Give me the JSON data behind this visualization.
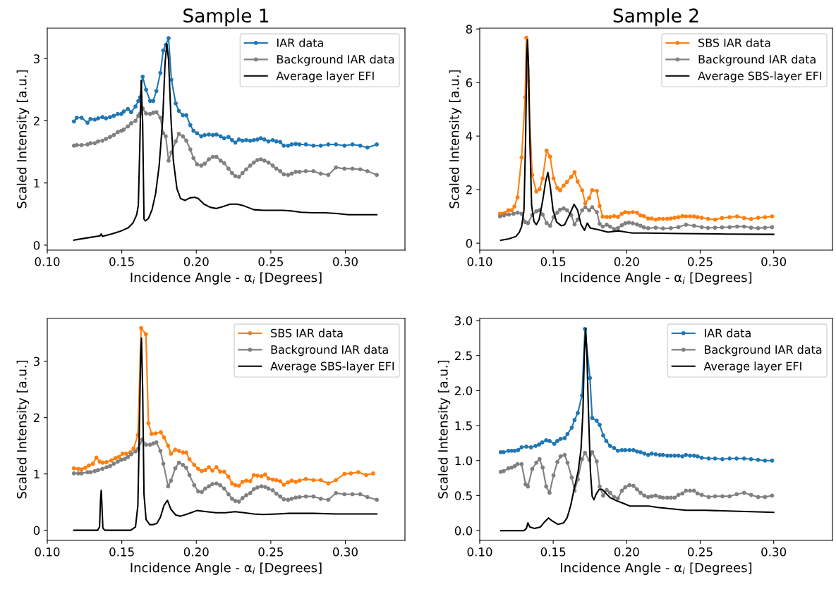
{
  "chart_data": [
    {
      "type": "line",
      "title": "Sample 1",
      "xlabel": "Incidence Angle - α$_{i}$ [Degrees]",
      "ylabel": "Scaled Intensity [a.u.]",
      "xlim": [
        0.1,
        0.34
      ],
      "ylim": [
        -0.08,
        3.49
      ],
      "xticks": [
        {
          "value": 0.1,
          "label": "0.10"
        },
        {
          "value": 0.15,
          "label": "0.15"
        },
        {
          "value": 0.2,
          "label": "0.20"
        },
        {
          "value": 0.25,
          "label": "0.25"
        },
        {
          "value": 0.3,
          "label": "0.30"
        }
      ],
      "yticks": [
        0,
        1,
        2,
        3
      ],
      "grid": false,
      "legend": "top right",
      "series": [
        {
          "name": "IAR data",
          "color": "#1f77b4",
          "marker": "circle",
          "x": [
            0.1179,
            0.1198,
            0.123,
            0.127,
            0.129,
            0.1319,
            0.1341,
            0.137,
            0.1394,
            0.1421,
            0.1446,
            0.1473,
            0.1497,
            0.1513,
            0.1541,
            0.1563,
            0.1592,
            0.1611,
            0.1624,
            0.164,
            0.1663,
            0.169,
            0.1711,
            0.1732,
            0.1759,
            0.1778,
            0.1795,
            0.1814,
            0.1833,
            0.1862,
            0.1883,
            0.191,
            0.1933,
            0.196,
            0.1981,
            0.2005,
            0.2033,
            0.2056,
            0.2084,
            0.2111,
            0.2135,
            0.2163,
            0.2187,
            0.2216,
            0.224,
            0.2262,
            0.2286,
            0.231,
            0.2335,
            0.2362,
            0.2386,
            0.241,
            0.2433,
            0.2457,
            0.2484,
            0.2513,
            0.2537,
            0.2563,
            0.2587,
            0.2616,
            0.264,
            0.2667,
            0.2692,
            0.2735,
            0.2786,
            0.2835,
            0.2886,
            0.2937,
            0.2994,
            0.3048,
            0.31,
            0.3148,
            0.3211
          ],
          "values": [
            1.99,
            2.05,
            2.05,
            1.97,
            2.03,
            2.02,
            2.04,
            2.06,
            2.04,
            2.06,
            2.08,
            2.11,
            2.11,
            2.15,
            2.19,
            2.14,
            2.23,
            2.32,
            2.38,
            2.71,
            2.5,
            2.32,
            2.32,
            2.48,
            2.77,
            3.13,
            3.22,
            3.33,
            2.66,
            2.28,
            2.16,
            2.09,
            2.09,
            1.93,
            1.84,
            1.8,
            1.75,
            1.77,
            1.78,
            1.77,
            1.78,
            1.75,
            1.72,
            1.74,
            1.69,
            1.65,
            1.7,
            1.68,
            1.69,
            1.68,
            1.69,
            1.7,
            1.72,
            1.7,
            1.67,
            1.69,
            1.67,
            1.66,
            1.6,
            1.6,
            1.62,
            1.63,
            1.62,
            1.62,
            1.6,
            1.6,
            1.62,
            1.62,
            1.6,
            1.62,
            1.6,
            1.57,
            1.62
          ]
        },
        {
          "name": "Background IAR data",
          "color": "#808080",
          "marker": "circle",
          "x": [
            0.1179,
            0.1198,
            0.123,
            0.127,
            0.129,
            0.1319,
            0.1341,
            0.137,
            0.1394,
            0.1421,
            0.1446,
            0.1473,
            0.1497,
            0.1513,
            0.1541,
            0.1563,
            0.1592,
            0.1611,
            0.1624,
            0.164,
            0.1663,
            0.169,
            0.1711,
            0.1732,
            0.1759,
            0.1778,
            0.1795,
            0.1814,
            0.1833,
            0.1862,
            0.1883,
            0.191,
            0.1933,
            0.196,
            0.1981,
            0.2005,
            0.2033,
            0.2056,
            0.2084,
            0.2111,
            0.2135,
            0.2163,
            0.2187,
            0.2216,
            0.224,
            0.2262,
            0.2286,
            0.231,
            0.2335,
            0.2362,
            0.2386,
            0.241,
            0.2433,
            0.2457,
            0.2484,
            0.2513,
            0.2537,
            0.2563,
            0.2587,
            0.2616,
            0.264,
            0.2667,
            0.2692,
            0.2735,
            0.2786,
            0.2835,
            0.2886,
            0.2937,
            0.2994,
            0.3048,
            0.31,
            0.3148,
            0.3211
          ],
          "values": [
            1.6,
            1.61,
            1.61,
            1.62,
            1.64,
            1.64,
            1.67,
            1.68,
            1.71,
            1.74,
            1.77,
            1.82,
            1.84,
            1.86,
            1.91,
            1.96,
            2.0,
            2.08,
            2.12,
            2.2,
            2.12,
            2.11,
            2.13,
            2.14,
            2.05,
            1.8,
            1.75,
            1.36,
            1.49,
            1.67,
            1.79,
            1.75,
            1.68,
            1.54,
            1.4,
            1.3,
            1.28,
            1.31,
            1.38,
            1.42,
            1.42,
            1.36,
            1.32,
            1.23,
            1.16,
            1.11,
            1.1,
            1.16,
            1.22,
            1.28,
            1.33,
            1.37,
            1.38,
            1.36,
            1.33,
            1.28,
            1.23,
            1.19,
            1.14,
            1.13,
            1.15,
            1.18,
            1.18,
            1.19,
            1.19,
            1.15,
            1.13,
            1.25,
            1.23,
            1.23,
            1.22,
            1.19,
            1.13
          ]
        },
        {
          "name": "Average layer EFI",
          "color": "#000000",
          "marker": "none",
          "x": [
            0.1179,
            0.1275,
            0.1354,
            0.1362,
            0.137,
            0.1433,
            0.1497,
            0.1544,
            0.1576,
            0.16,
            0.1611,
            0.1621,
            0.163,
            0.164,
            0.1649,
            0.1659,
            0.1679,
            0.1703,
            0.1727,
            0.1751,
            0.1775,
            0.179,
            0.1802,
            0.1814,
            0.183,
            0.1846,
            0.187,
            0.1894,
            0.1925,
            0.1957,
            0.1989,
            0.2013,
            0.2052,
            0.2092,
            0.2132,
            0.2179,
            0.2227,
            0.2275,
            0.2322,
            0.2386,
            0.2449,
            0.2513,
            0.2576,
            0.264,
            0.2703,
            0.2783,
            0.2862,
            0.2941,
            0.3021,
            0.31,
            0.3211
          ],
          "values": [
            0.08,
            0.12,
            0.15,
            0.18,
            0.14,
            0.18,
            0.23,
            0.28,
            0.36,
            0.49,
            0.64,
            1.59,
            2.65,
            1.96,
            0.42,
            0.39,
            0.43,
            0.57,
            0.83,
            1.28,
            2.04,
            2.91,
            3.24,
            2.98,
            2.04,
            1.36,
            0.91,
            0.75,
            0.72,
            0.76,
            0.77,
            0.75,
            0.66,
            0.61,
            0.59,
            0.62,
            0.66,
            0.66,
            0.63,
            0.57,
            0.56,
            0.56,
            0.56,
            0.55,
            0.53,
            0.52,
            0.52,
            0.51,
            0.49,
            0.49,
            0.49
          ]
        }
      ]
    },
    {
      "type": "line",
      "title": "Sample 2",
      "xlabel": "Incidence Angle - α$_{i}$ [Degrees]",
      "ylabel": "Scaled Intensity [a.u.]",
      "xlim": [
        0.1,
        0.34
      ],
      "ylim": [
        -0.26,
        8.03
      ],
      "xticks": [
        {
          "value": 0.1,
          "label": "0.10"
        },
        {
          "value": 0.15,
          "label": "0.15"
        },
        {
          "value": 0.2,
          "label": "0.20"
        },
        {
          "value": 0.25,
          "label": "0.25"
        },
        {
          "value": 0.3,
          "label": "0.30"
        }
      ],
      "yticks": [
        0,
        2,
        4,
        6,
        8
      ],
      "grid": false,
      "legend": "top right",
      "series": [
        {
          "name": "SBS IAR data",
          "color": "#ff7f0e",
          "marker": "circle",
          "x": [
            0.1138,
            0.1158,
            0.1174,
            0.1195,
            0.1217,
            0.1236,
            0.1257,
            0.1285,
            0.1309,
            0.1317,
            0.1328,
            0.1357,
            0.1385,
            0.1407,
            0.1428,
            0.1455,
            0.1479,
            0.1502,
            0.1528,
            0.1547,
            0.1571,
            0.1594,
            0.1623,
            0.1645,
            0.1666,
            0.1697,
            0.1718,
            0.1745,
            0.1765,
            0.1797,
            0.1816,
            0.1837,
            0.1864,
            0.1887,
            0.1914,
            0.194,
            0.1967,
            0.199,
            0.2014,
            0.2041,
            0.207,
            0.2094,
            0.2117,
            0.2146,
            0.217,
            0.2197,
            0.222,
            0.2247,
            0.2276,
            0.23,
            0.2326,
            0.2352,
            0.2379,
            0.2403,
            0.2431,
            0.2458,
            0.2482,
            0.251,
            0.2553,
            0.2601,
            0.2648,
            0.27,
            0.2751,
            0.2799,
            0.2846,
            0.2894,
            0.2941,
            0.2989
          ],
          "values": [
            1.1,
            1.1,
            1.13,
            1.23,
            1.23,
            1.37,
            1.71,
            3.2,
            5.45,
            7.67,
            6.07,
            2.55,
            1.93,
            2.02,
            2.42,
            3.46,
            3.23,
            2.42,
            2.06,
            1.97,
            2.15,
            2.29,
            2.48,
            2.65,
            2.3,
            1.97,
            1.49,
            1.69,
            1.98,
            1.95,
            1.39,
            0.99,
            0.98,
            0.98,
            1.01,
            0.98,
            1.1,
            1.16,
            1.14,
            1.16,
            1.14,
            1.04,
            1.01,
            0.92,
            0.92,
            0.88,
            0.91,
            0.91,
            0.91,
            0.92,
            0.95,
            0.97,
            1.01,
            1.0,
            1.0,
            1.0,
            0.97,
            0.95,
            0.91,
            0.88,
            0.94,
            0.97,
            1.0,
            0.94,
            0.9,
            0.95,
            0.97,
            1.0
          ]
        },
        {
          "name": "Background IAR data",
          "color": "#808080",
          "marker": "circle",
          "x": [
            0.1138,
            0.1166,
            0.1198,
            0.123,
            0.1257,
            0.1285,
            0.1309,
            0.1328,
            0.1357,
            0.1385,
            0.1407,
            0.1428,
            0.1455,
            0.1479,
            0.1502,
            0.1528,
            0.1547,
            0.1571,
            0.1594,
            0.1623,
            0.1645,
            0.1666,
            0.1697,
            0.1718,
            0.1745,
            0.1765,
            0.1797,
            0.1816,
            0.1837,
            0.1864,
            0.1887,
            0.1914,
            0.194,
            0.1967,
            0.199,
            0.2014,
            0.2041,
            0.207,
            0.2094,
            0.2117,
            0.2146,
            0.2197,
            0.2247,
            0.23,
            0.2352,
            0.2403,
            0.2458,
            0.251,
            0.2553,
            0.2601,
            0.2648,
            0.27,
            0.2751,
            0.2799,
            0.2846,
            0.2894,
            0.2941,
            0.2989
          ],
          "values": [
            1.0,
            1.04,
            1.07,
            1.1,
            1.14,
            1.1,
            0.79,
            0.75,
            1.05,
            1.19,
            1.23,
            1.07,
            0.75,
            0.65,
            0.97,
            1.14,
            1.25,
            1.3,
            1.23,
            1.05,
            0.7,
            0.88,
            1.23,
            1.34,
            1.23,
            1.34,
            1.16,
            0.72,
            0.62,
            0.69,
            0.62,
            0.53,
            0.56,
            0.67,
            0.74,
            0.77,
            0.74,
            0.7,
            0.65,
            0.59,
            0.56,
            0.58,
            0.55,
            0.56,
            0.6,
            0.69,
            0.65,
            0.6,
            0.57,
            0.58,
            0.59,
            0.6,
            0.62,
            0.62,
            0.58,
            0.56,
            0.58,
            0.6
          ]
        },
        {
          "name": "Average SBS-layer EFI",
          "color": "#000000",
          "marker": "none",
          "x": [
            0.1143,
            0.1198,
            0.1246,
            0.1269,
            0.1285,
            0.1301,
            0.1312,
            0.132,
            0.1325,
            0.1333,
            0.1341,
            0.1353,
            0.1369,
            0.1385,
            0.1404,
            0.1428,
            0.1448,
            0.1464,
            0.148,
            0.1499,
            0.1523,
            0.1555,
            0.1578,
            0.161,
            0.1642,
            0.1666,
            0.1689,
            0.1713,
            0.1732,
            0.1753,
            0.1784,
            0.1816,
            0.1872,
            0.1943,
            0.199,
            0.2038,
            0.2133,
            0.2371,
            0.2688,
            0.3
          ],
          "values": [
            0.11,
            0.16,
            0.25,
            0.4,
            0.62,
            1.23,
            3.87,
            6.95,
            7.6,
            6.51,
            3.87,
            1.41,
            0.81,
            0.69,
            0.88,
            1.58,
            2.29,
            2.64,
            2.11,
            1.23,
            0.79,
            0.65,
            0.69,
            1.06,
            1.45,
            1.23,
            0.7,
            0.48,
            0.75,
            0.56,
            0.53,
            0.49,
            0.41,
            0.46,
            0.42,
            0.38,
            0.38,
            0.36,
            0.34,
            0.33
          ]
        }
      ]
    },
    {
      "type": "line",
      "xlabel": "Incidence Angle - α$_{i}$ [Degrees]",
      "ylabel": "Scaled Intensity [a.u.]",
      "xlim": [
        0.1,
        0.34
      ],
      "ylim": [
        -0.18,
        3.76
      ],
      "xticks": [
        {
          "value": 0.1,
          "label": "0.10"
        },
        {
          "value": 0.15,
          "label": "0.15"
        },
        {
          "value": 0.2,
          "label": "0.20"
        },
        {
          "value": 0.25,
          "label": "0.25"
        },
        {
          "value": 0.3,
          "label": "0.30"
        }
      ],
      "yticks": [
        0,
        1,
        2,
        3
      ],
      "grid": false,
      "legend": "top right",
      "series": [
        {
          "name": "SBS IAR data",
          "color": "#ff7f0e",
          "marker": "circle",
          "x": [
            0.1179,
            0.1208,
            0.123,
            0.1256,
            0.1279,
            0.1306,
            0.133,
            0.1351,
            0.1373,
            0.1398,
            0.143,
            0.1457,
            0.1481,
            0.1505,
            0.1529,
            0.1557,
            0.1579,
            0.1608,
            0.163,
            0.1662,
            0.1679,
            0.17,
            0.1727,
            0.1762,
            0.1783,
            0.1811,
            0.183,
            0.1859,
            0.1884,
            0.191,
            0.1932,
            0.1954,
            0.1986,
            0.2013,
            0.2037,
            0.206,
            0.2084,
            0.2108,
            0.2135,
            0.216,
            0.2187,
            0.2216,
            0.224,
            0.2262,
            0.2286,
            0.231,
            0.2335,
            0.2362,
            0.2386,
            0.241,
            0.2437,
            0.2462,
            0.2484,
            0.2513,
            0.2537,
            0.2563,
            0.2587,
            0.2616,
            0.264,
            0.2667,
            0.2692,
            0.2735,
            0.2786,
            0.2835,
            0.2886,
            0.2937,
            0.2994,
            0.3037,
            0.3087,
            0.314,
            0.3187
          ],
          "values": [
            1.1,
            1.09,
            1.08,
            1.11,
            1.15,
            1.18,
            1.29,
            1.22,
            1.2,
            1.21,
            1.24,
            1.28,
            1.3,
            1.36,
            1.36,
            1.38,
            1.45,
            1.69,
            3.59,
            3.48,
            1.9,
            1.71,
            1.72,
            1.74,
            1.65,
            1.5,
            1.36,
            1.43,
            1.41,
            1.38,
            1.38,
            1.26,
            1.16,
            1.09,
            1.05,
            1.07,
            1.12,
            1.06,
            1.12,
            1.04,
            1.04,
            0.95,
            0.83,
            0.8,
            0.79,
            0.86,
            0.88,
            0.87,
            0.98,
            0.97,
            0.96,
            0.99,
            0.92,
            0.9,
            0.89,
            0.87,
            0.81,
            0.85,
            0.88,
            0.86,
            0.88,
            0.91,
            0.89,
            0.89,
            0.83,
            0.89,
            1.0,
            1.01,
            1.03,
            0.98,
            1.01
          ]
        },
        {
          "name": "Background IAR data",
          "color": "#808080",
          "marker": "circle",
          "x": [
            0.1179,
            0.1208,
            0.123,
            0.127,
            0.129,
            0.1319,
            0.1341,
            0.137,
            0.1398,
            0.1421,
            0.1446,
            0.1473,
            0.1497,
            0.1521,
            0.1541,
            0.1563,
            0.1592,
            0.1611,
            0.1637,
            0.1663,
            0.169,
            0.1711,
            0.1732,
            0.1759,
            0.1779,
            0.1811,
            0.183,
            0.1859,
            0.1884,
            0.191,
            0.1932,
            0.1954,
            0.1986,
            0.2013,
            0.2037,
            0.206,
            0.2084,
            0.2108,
            0.2135,
            0.216,
            0.2187,
            0.2216,
            0.224,
            0.2262,
            0.2286,
            0.231,
            0.2335,
            0.2362,
            0.2386,
            0.241,
            0.2437,
            0.2462,
            0.2484,
            0.2513,
            0.2537,
            0.2563,
            0.2587,
            0.2616,
            0.264,
            0.2667,
            0.2692,
            0.2735,
            0.2786,
            0.2835,
            0.2886,
            0.2937,
            0.2994,
            0.3048,
            0.31,
            0.3148,
            0.3211
          ],
          "values": [
            1.01,
            1.01,
            1.01,
            1.03,
            1.03,
            1.05,
            1.07,
            1.09,
            1.12,
            1.14,
            1.18,
            1.22,
            1.25,
            1.27,
            1.3,
            1.35,
            1.4,
            1.45,
            1.61,
            1.52,
            1.52,
            1.54,
            1.56,
            1.41,
            1.18,
            0.78,
            0.88,
            1.1,
            1.2,
            1.16,
            1.11,
            0.98,
            0.8,
            0.69,
            0.68,
            0.74,
            0.78,
            0.82,
            0.83,
            0.8,
            0.74,
            0.64,
            0.56,
            0.52,
            0.51,
            0.57,
            0.62,
            0.66,
            0.73,
            0.76,
            0.78,
            0.77,
            0.74,
            0.71,
            0.65,
            0.6,
            0.55,
            0.54,
            0.56,
            0.58,
            0.59,
            0.6,
            0.6,
            0.56,
            0.54,
            0.66,
            0.64,
            0.64,
            0.64,
            0.59,
            0.54
          ]
        },
        {
          "name": "Average SBS-layer EFI",
          "color": "#000000",
          "marker": "none",
          "x": [
            0.1179,
            0.1338,
            0.1351,
            0.1357,
            0.1362,
            0.1367,
            0.1373,
            0.1386,
            0.156,
            0.1592,
            0.1608,
            0.1617,
            0.1627,
            0.1632,
            0.164,
            0.1649,
            0.1663,
            0.1687,
            0.1711,
            0.1735,
            0.1759,
            0.1783,
            0.1806,
            0.183,
            0.1862,
            0.1894,
            0.1941,
            0.2005,
            0.2068,
            0.2132,
            0.2195,
            0.2259,
            0.2322,
            0.2386,
            0.2449,
            0.2544,
            0.2624,
            0.2783,
            0.2941,
            0.3211
          ],
          "values": [
            0.0,
            0.0,
            0.06,
            0.52,
            0.71,
            0.44,
            0.04,
            0.0,
            0.0,
            0.06,
            0.44,
            1.68,
            3.14,
            3.41,
            2.51,
            0.64,
            0.19,
            0.1,
            0.1,
            0.12,
            0.23,
            0.44,
            0.53,
            0.37,
            0.27,
            0.25,
            0.29,
            0.35,
            0.33,
            0.31,
            0.31,
            0.33,
            0.31,
            0.29,
            0.28,
            0.29,
            0.3,
            0.3,
            0.29,
            0.29
          ]
        }
      ]
    },
    {
      "type": "line",
      "xlabel": "Incidence Angle - α$_{i}$ [Degrees]",
      "ylabel": "Scaled Intensity [a.u.]",
      "xlim": [
        0.1,
        0.34
      ],
      "ylim": [
        -0.14,
        3.03
      ],
      "xticks": [
        {
          "value": 0.1,
          "label": "0.10"
        },
        {
          "value": 0.15,
          "label": "0.15"
        },
        {
          "value": 0.2,
          "label": "0.20"
        },
        {
          "value": 0.25,
          "label": "0.25"
        },
        {
          "value": 0.3,
          "label": "0.30"
        }
      ],
      "yticks": [
        {
          "value": 0,
          "label": "0.0"
        },
        {
          "value": 0.5,
          "label": "0.5"
        },
        {
          "value": 1,
          "label": "1.0"
        },
        {
          "value": 1.5,
          "label": "1.5"
        },
        {
          "value": 2,
          "label": "2.0"
        },
        {
          "value": 2.5,
          "label": "2.5"
        },
        {
          "value": 3,
          "label": "3.0"
        }
      ],
      "grid": false,
      "legend": "top right",
      "series": [
        {
          "name": "IAR data",
          "color": "#1f77b4",
          "marker": "circle",
          "x": [
            0.1143,
            0.1163,
            0.1195,
            0.1217,
            0.1238,
            0.1261,
            0.1285,
            0.1317,
            0.1349,
            0.138,
            0.1404,
            0.1425,
            0.1452,
            0.1475,
            0.1507,
            0.1528,
            0.155,
            0.1578,
            0.1597,
            0.1626,
            0.1645,
            0.1667,
            0.1696,
            0.1716,
            0.175,
            0.1765,
            0.1796,
            0.1816,
            0.184,
            0.1861,
            0.1887,
            0.1914,
            0.194,
            0.1967,
            0.199,
            0.2019,
            0.2046,
            0.207,
            0.2094,
            0.212,
            0.2146,
            0.217,
            0.2197,
            0.2225,
            0.2247,
            0.2276,
            0.23,
            0.2326,
            0.2352,
            0.2379,
            0.2403,
            0.2431,
            0.2458,
            0.2482,
            0.251,
            0.2558,
            0.2601,
            0.2651,
            0.27,
            0.2748,
            0.2799,
            0.2846,
            0.2894,
            0.2941,
            0.2989
          ],
          "values": [
            1.12,
            1.12,
            1.14,
            1.14,
            1.14,
            1.15,
            1.19,
            1.2,
            1.19,
            1.21,
            1.23,
            1.26,
            1.29,
            1.28,
            1.24,
            1.28,
            1.31,
            1.32,
            1.38,
            1.47,
            1.58,
            1.68,
            1.93,
            2.88,
            2.18,
            1.61,
            1.57,
            1.51,
            1.36,
            1.28,
            1.21,
            1.18,
            1.14,
            1.15,
            1.15,
            1.15,
            1.15,
            1.13,
            1.12,
            1.1,
            1.08,
            1.1,
            1.09,
            1.08,
            1.08,
            1.07,
            1.07,
            1.07,
            1.07,
            1.06,
            1.08,
            1.07,
            1.07,
            1.06,
            1.04,
            1.03,
            1.03,
            1.02,
            1.03,
            1.03,
            1.03,
            1.02,
            1.01,
            1.0,
            1.0
          ]
        },
        {
          "name": "Background IAR data",
          "color": "#808080",
          "marker": "circle",
          "x": [
            0.1143,
            0.1163,
            0.1195,
            0.1217,
            0.1238,
            0.1257,
            0.1285,
            0.1312,
            0.1328,
            0.1357,
            0.1385,
            0.1407,
            0.1428,
            0.1452,
            0.1475,
            0.1502,
            0.1528,
            0.155,
            0.1578,
            0.1597,
            0.1626,
            0.1645,
            0.1667,
            0.1696,
            0.1716,
            0.1745,
            0.1765,
            0.1796,
            0.1816,
            0.184,
            0.1864,
            0.1887,
            0.1914,
            0.194,
            0.1967,
            0.199,
            0.2019,
            0.2046,
            0.207,
            0.2094,
            0.212,
            0.2146,
            0.217,
            0.2197,
            0.2225,
            0.2247,
            0.2276,
            0.23,
            0.2326,
            0.2352,
            0.2379,
            0.2403,
            0.2431,
            0.2458,
            0.2482,
            0.251,
            0.2558,
            0.2601,
            0.2651,
            0.27,
            0.2748,
            0.2799,
            0.2846,
            0.2894,
            0.2941,
            0.2989
          ],
          "values": [
            0.84,
            0.85,
            0.89,
            0.9,
            0.92,
            0.95,
            0.95,
            0.66,
            0.63,
            0.88,
            0.97,
            1.02,
            0.9,
            0.63,
            0.54,
            0.79,
            0.98,
            1.06,
            1.08,
            0.97,
            0.76,
            0.57,
            0.73,
            1.02,
            1.11,
            1.01,
            1.12,
            0.99,
            0.63,
            0.5,
            0.58,
            0.54,
            0.48,
            0.46,
            0.57,
            0.62,
            0.65,
            0.64,
            0.59,
            0.54,
            0.5,
            0.48,
            0.49,
            0.5,
            0.48,
            0.47,
            0.47,
            0.47,
            0.47,
            0.51,
            0.53,
            0.57,
            0.57,
            0.57,
            0.53,
            0.51,
            0.48,
            0.49,
            0.49,
            0.49,
            0.52,
            0.54,
            0.51,
            0.48,
            0.48,
            0.5
          ]
        },
        {
          "name": "Average layer EFI",
          "color": "#000000",
          "marker": "none",
          "x": [
            0.1143,
            0.1301,
            0.1317,
            0.1328,
            0.1341,
            0.1372,
            0.1412,
            0.1444,
            0.1468,
            0.1491,
            0.1531,
            0.1571,
            0.1594,
            0.1618,
            0.1642,
            0.167,
            0.1689,
            0.1702,
            0.1712,
            0.1721,
            0.1729,
            0.174,
            0.1753,
            0.1765,
            0.1777,
            0.1792,
            0.1813,
            0.1832,
            0.1856,
            0.1887,
            0.1927,
            0.1975,
            0.2022,
            0.2086,
            0.2149,
            0.2212,
            0.2307,
            0.2403,
            0.2529,
            0.2688,
            0.2846,
            0.3
          ],
          "values": [
            0.0,
            0.0,
            0.03,
            0.11,
            0.05,
            0.03,
            0.05,
            0.13,
            0.18,
            0.14,
            0.09,
            0.11,
            0.18,
            0.35,
            0.59,
            0.85,
            1.16,
            1.69,
            2.53,
            2.88,
            2.53,
            1.69,
            0.85,
            0.49,
            0.44,
            0.52,
            0.59,
            0.59,
            0.54,
            0.47,
            0.43,
            0.39,
            0.35,
            0.35,
            0.35,
            0.33,
            0.31,
            0.29,
            0.29,
            0.28,
            0.27,
            0.26
          ]
        }
      ]
    }
  ]
}
